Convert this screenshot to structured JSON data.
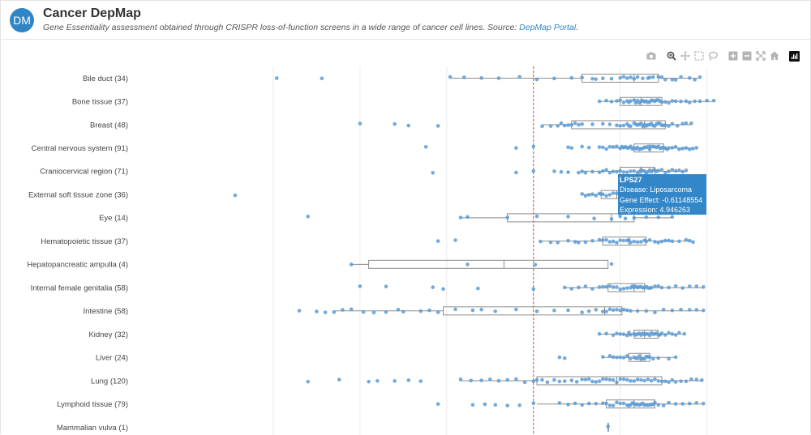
{
  "header": {
    "avatar_initials": "DM",
    "title": "Cancer DepMap",
    "subtitle_text": "Gene Essentiality assessment obtained through CRISPR loss-of-function screens in a wide range of cancer cell lines. Source: ",
    "subtitle_link": "DepMap Portal",
    "subtitle_end": "."
  },
  "toolbar": {
    "icons": [
      "camera-icon",
      "zoom-icon",
      "pan-icon",
      "box-select-icon",
      "lasso-select-icon",
      "zoom-in-icon",
      "zoom-out-icon",
      "autoscale-icon",
      "reset-axes-icon",
      "plotly-logo-icon"
    ]
  },
  "colors": {
    "point": "#5b9bd5",
    "box": "#8c8c8c",
    "reference_line": "#e04848",
    "grid": "#ececec",
    "tooltip": "#3387c8"
  },
  "tooltip": {
    "title": "LPS27",
    "disease": "Disease: Liposarcoma",
    "gene_effect": "Gene Effect: -0.61148554",
    "expression": "Expression: 4.946263"
  },
  "chart_data": {
    "type": "box",
    "orientation": "horizontal",
    "points_shown": true,
    "reference_line_x": -1.0,
    "xlim": [
      -3.0,
      0.6
    ],
    "grid": true,
    "gridlines_x": [
      -2.5,
      -2.0,
      -1.5,
      -1.0,
      -0.5,
      0.0
    ],
    "categories": [
      {
        "label": "Bile duct (34)",
        "box": [
          -1.48,
          -0.72,
          -0.42,
          -0.28,
          -0.05
        ],
        "points": [
          -2.48,
          -2.22,
          -1.48,
          -1.4,
          -1.3,
          -1.2,
          -1.08,
          -0.98,
          -0.88,
          -0.78,
          -0.72,
          -0.64,
          -0.55,
          -0.48,
          -0.46,
          -0.44,
          -0.42,
          -0.4,
          -0.37,
          -0.34,
          -0.31,
          -0.28,
          -0.24,
          -0.2,
          -0.15,
          -0.1,
          -0.07,
          -0.04,
          -0.5,
          -0.6,
          -0.66,
          -0.33,
          -0.26,
          -0.18
        ]
      },
      {
        "label": "Bone tissue (37)",
        "box": [
          -0.62,
          -0.5,
          -0.38,
          -0.26,
          0.04
        ],
        "points": [
          -0.62,
          -0.58,
          -0.55,
          -0.52,
          -0.5,
          -0.48,
          -0.46,
          -0.44,
          -0.42,
          -0.41,
          -0.4,
          -0.39,
          -0.38,
          -0.37,
          -0.36,
          -0.35,
          -0.34,
          -0.33,
          -0.32,
          -0.31,
          -0.3,
          -0.29,
          -0.28,
          -0.27,
          -0.26,
          -0.24,
          -0.22,
          -0.2,
          -0.18,
          -0.15,
          -0.12,
          -0.1,
          -0.07,
          -0.04,
          0.0,
          0.04,
          -0.45
        ]
      },
      {
        "label": "Breast (48)",
        "box": [
          -0.95,
          -0.78,
          -0.36,
          -0.24,
          -0.09
        ],
        "points": [
          -2.0,
          -1.8,
          -1.72,
          -1.55,
          -0.95,
          -0.9,
          -0.86,
          -0.82,
          -0.8,
          -0.78,
          -0.76,
          -0.72,
          -0.66,
          -0.6,
          -0.56,
          -0.52,
          -0.48,
          -0.46,
          -0.44,
          -0.42,
          -0.41,
          -0.4,
          -0.39,
          -0.38,
          -0.37,
          -0.36,
          -0.35,
          -0.34,
          -0.33,
          -0.32,
          -0.31,
          -0.3,
          -0.29,
          -0.28,
          -0.27,
          -0.26,
          -0.25,
          -0.24,
          -0.22,
          -0.2,
          -0.17,
          -0.14,
          -0.12,
          -0.09,
          -0.84,
          -0.74,
          -0.5,
          -0.45
        ]
      },
      {
        "label": "Central nervous system (91)",
        "box": [
          -0.55,
          -0.42,
          -0.33,
          -0.25,
          -0.08
        ],
        "points": [
          -1.62,
          -1.1,
          -1.0,
          -0.8,
          -0.78,
          -0.72,
          -0.68,
          -0.62,
          -0.6,
          -0.58,
          -0.56,
          -0.54,
          -0.52,
          -0.5,
          -0.49,
          -0.48,
          -0.47,
          -0.46,
          -0.45,
          -0.44,
          -0.43,
          -0.42,
          -0.41,
          -0.4,
          -0.39,
          -0.38,
          -0.37,
          -0.36,
          -0.35,
          -0.34,
          -0.33,
          -0.32,
          -0.31,
          -0.3,
          -0.29,
          -0.28,
          -0.27,
          -0.26,
          -0.25,
          -0.24,
          -0.23,
          -0.22,
          -0.2,
          -0.18,
          -0.16,
          -0.14,
          -0.12,
          -0.1,
          -0.08,
          -0.06
        ]
      },
      {
        "label": "Craniocervical region (71)",
        "box": [
          -0.72,
          -0.5,
          -0.38,
          -0.3,
          -0.12
        ],
        "points": [
          -1.58,
          -1.1,
          -1.0,
          -0.88,
          -0.84,
          -0.8,
          -0.74,
          -0.72,
          -0.7,
          -0.66,
          -0.62,
          -0.6,
          -0.58,
          -0.56,
          -0.54,
          -0.52,
          -0.5,
          -0.48,
          -0.46,
          -0.44,
          -0.42,
          -0.4,
          -0.39,
          -0.38,
          -0.37,
          -0.36,
          -0.35,
          -0.34,
          -0.33,
          -0.32,
          -0.31,
          -0.3,
          -0.29,
          -0.28,
          -0.26,
          -0.24,
          -0.22,
          -0.2,
          -0.18,
          -0.16,
          -0.14,
          -0.12
        ]
      },
      {
        "label": "External soft tissue zone (36)",
        "box": [
          -0.72,
          -0.61,
          -0.52,
          -0.4,
          -0.3
        ],
        "points": [
          -2.72,
          -0.72,
          -0.7,
          -0.68,
          -0.66,
          -0.64,
          -0.62,
          -0.61,
          -0.6,
          -0.58,
          -0.56,
          -0.54,
          -0.52,
          -0.5,
          -0.48,
          -0.46,
          -0.44,
          -0.42,
          -0.4,
          -0.38,
          -0.36,
          -0.34,
          -0.32,
          -0.3
        ]
      },
      {
        "label": "Eye (14)",
        "box": [
          -1.42,
          -1.15,
          -0.55,
          -0.42,
          -0.2
        ],
        "points": [
          -2.3,
          -1.42,
          -1.38,
          -1.15,
          -0.98,
          -0.8,
          -0.65,
          -0.55,
          -0.5,
          -0.42,
          -0.35,
          -0.28,
          -0.2,
          -0.47
        ]
      },
      {
        "label": "Hematopoietic tissue (37)",
        "box": [
          -0.96,
          -0.6,
          -0.45,
          -0.35,
          -0.08
        ],
        "points": [
          -1.55,
          -1.45,
          -0.96,
          -0.9,
          -0.86,
          -0.8,
          -0.74,
          -0.7,
          -0.66,
          -0.62,
          -0.6,
          -0.58,
          -0.56,
          -0.54,
          -0.52,
          -0.5,
          -0.48,
          -0.46,
          -0.45,
          -0.44,
          -0.42,
          -0.4,
          -0.38,
          -0.36,
          -0.35,
          -0.33,
          -0.3,
          -0.28,
          -0.26,
          -0.24,
          -0.22,
          -0.2,
          -0.16,
          -0.12,
          -0.1,
          -0.08,
          -0.76
        ]
      },
      {
        "label": "Hepatopancreatic ampulla (4)",
        "box": [
          -2.05,
          -1.95,
          -1.17,
          -0.57,
          -0.57
        ],
        "points": [
          -2.05,
          -1.38,
          -0.99,
          -0.55
        ]
      },
      {
        "label": "Internal female genitalia (58)",
        "box": [
          -0.82,
          -0.57,
          -0.42,
          -0.36,
          -0.02
        ],
        "points": [
          -2.0,
          -1.85,
          -1.58,
          -1.52,
          -1.32,
          -1.0,
          -0.82,
          -0.78,
          -0.74,
          -0.7,
          -0.66,
          -0.62,
          -0.6,
          -0.58,
          -0.56,
          -0.54,
          -0.52,
          -0.5,
          -0.48,
          -0.46,
          -0.44,
          -0.43,
          -0.42,
          -0.41,
          -0.4,
          -0.39,
          -0.38,
          -0.37,
          -0.36,
          -0.35,
          -0.34,
          -0.33,
          -0.32,
          -0.3,
          -0.28,
          -0.26,
          -0.22,
          -0.18,
          -0.14,
          -0.1,
          -0.06,
          -0.02
        ]
      },
      {
        "label": "Intestine (58)",
        "box": [
          -2.15,
          -1.52,
          -0.59,
          -0.49,
          -0.02
        ],
        "points": [
          -2.35,
          -2.25,
          -2.2,
          -2.15,
          -2.1,
          -2.05,
          -1.98,
          -1.92,
          -1.85,
          -1.75,
          -1.65,
          -1.55,
          -1.45,
          -1.35,
          -1.22,
          -1.1,
          -0.98,
          -0.88,
          -0.8,
          -0.72,
          -0.68,
          -0.64,
          -0.6,
          -0.58,
          -0.56,
          -0.54,
          -0.52,
          -0.5,
          -0.48,
          -0.46,
          -0.44,
          -0.4,
          -0.35,
          -0.3,
          -0.25,
          -0.2,
          -0.15,
          -0.1,
          -0.06,
          -0.02,
          -1.78,
          -1.6,
          -1.3
        ]
      },
      {
        "label": "Kidney (32)",
        "box": [
          -0.62,
          -0.42,
          -0.36,
          -0.28,
          -0.13
        ],
        "points": [
          -0.62,
          -0.58,
          -0.54,
          -0.5,
          -0.48,
          -0.46,
          -0.44,
          -0.42,
          -0.41,
          -0.4,
          -0.39,
          -0.38,
          -0.37,
          -0.36,
          -0.35,
          -0.34,
          -0.33,
          -0.32,
          -0.31,
          -0.3,
          -0.29,
          -0.28,
          -0.27,
          -0.26,
          -0.24,
          -0.22,
          -0.2,
          -0.18,
          -0.16,
          -0.13,
          -0.52,
          -0.45
        ]
      },
      {
        "label": "Liver (24)",
        "box": [
          -0.6,
          -0.45,
          -0.38,
          -0.33,
          -0.18
        ],
        "points": [
          -0.85,
          -0.82,
          -0.6,
          -0.56,
          -0.52,
          -0.5,
          -0.48,
          -0.46,
          -0.44,
          -0.42,
          -0.41,
          -0.4,
          -0.39,
          -0.38,
          -0.37,
          -0.36,
          -0.35,
          -0.34,
          -0.33,
          -0.31,
          -0.28,
          -0.22,
          -0.18,
          -0.54
        ]
      },
      {
        "label": "Lung (120)",
        "box": [
          -1.42,
          -0.98,
          -0.52,
          -0.26,
          -0.02
        ],
        "points": [
          -2.3,
          -2.12,
          -1.95,
          -1.9,
          -1.8,
          -1.72,
          -1.65,
          -1.42,
          -1.36,
          -1.3,
          -1.25,
          -1.2,
          -1.15,
          -1.1,
          -1.05,
          -1.0,
          -0.98,
          -0.95,
          -0.92,
          -0.88,
          -0.85,
          -0.82,
          -0.78,
          -0.75,
          -0.72,
          -0.7,
          -0.68,
          -0.66,
          -0.64,
          -0.62,
          -0.6,
          -0.58,
          -0.56,
          -0.54,
          -0.52,
          -0.5,
          -0.48,
          -0.46,
          -0.44,
          -0.42,
          -0.4,
          -0.38,
          -0.36,
          -0.34,
          -0.32,
          -0.3,
          -0.28,
          -0.26,
          -0.24,
          -0.22,
          -0.2,
          -0.18,
          -0.15,
          -0.12,
          -0.09,
          -0.06,
          -0.03
        ]
      },
      {
        "label": "Lymphoid tissue (79)",
        "box": [
          -0.98,
          -0.58,
          -0.42,
          -0.3,
          -0.02
        ],
        "points": [
          -1.55,
          -1.35,
          -1.28,
          -1.22,
          -1.15,
          -1.08,
          -1.0,
          -0.85,
          -0.8,
          -0.76,
          -0.72,
          -0.68,
          -0.64,
          -0.6,
          -0.58,
          -0.56,
          -0.54,
          -0.52,
          -0.5,
          -0.48,
          -0.46,
          -0.45,
          -0.44,
          -0.43,
          -0.42,
          -0.41,
          -0.4,
          -0.39,
          -0.38,
          -0.37,
          -0.36,
          -0.35,
          -0.34,
          -0.33,
          -0.32,
          -0.31,
          -0.3,
          -0.28,
          -0.25,
          -0.22,
          -0.18,
          -0.14,
          -0.1,
          -0.06,
          -0.02
        ]
      },
      {
        "label": "Mammalian vulva (1)",
        "box": [
          -0.57,
          -0.57,
          -0.57,
          -0.57,
          -0.57
        ],
        "points": [
          -0.57
        ]
      }
    ]
  }
}
